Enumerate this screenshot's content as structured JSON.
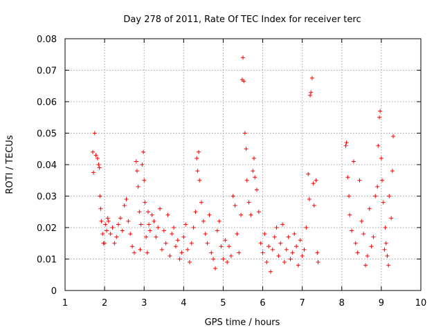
{
  "chart_data": {
    "type": "scatter",
    "title": "Day 278 of 2011, Rate Of TEC Index for receiver terc",
    "xlabel": "GPS time / hours",
    "ylabel": "ROTI / TECUs",
    "xlim": [
      1,
      10
    ],
    "ylim": [
      0,
      0.08
    ],
    "xticks": [
      "1",
      "2",
      "3",
      "4",
      "5",
      "6",
      "7",
      "8",
      "9",
      "10"
    ],
    "yticks": [
      "0",
      "0.01",
      "0.02",
      "0.03",
      "0.04",
      "0.05",
      "0.06",
      "0.07",
      "0.08"
    ],
    "grid": true,
    "marker": "plus",
    "color": "#ff0000",
    "series": [
      {
        "x": [
          1.7,
          1.72,
          1.75,
          1.78,
          1.82,
          1.85,
          1.87,
          1.88,
          1.9,
          1.92,
          1.95,
          1.97,
          2.0,
          2.02,
          2.05,
          2.08,
          2.1,
          2.15,
          2.2,
          2.25,
          2.3,
          2.35,
          2.4,
          2.45,
          2.5,
          2.55,
          2.6,
          2.65,
          2.7,
          2.75,
          2.8,
          2.82,
          2.85,
          2.88,
          2.9,
          2.92,
          2.95,
          2.98,
          3.0,
          3.02,
          3.05,
          3.08,
          3.1,
          3.12,
          3.15,
          3.2,
          3.25,
          3.3,
          3.35,
          3.4,
          3.45,
          3.5,
          3.55,
          3.6,
          3.65,
          3.7,
          3.75,
          3.8,
          3.85,
          3.9,
          3.95,
          4.0,
          4.05,
          4.1,
          4.15,
          4.2,
          4.25,
          4.3,
          4.33,
          4.35,
          4.38,
          4.4,
          4.45,
          4.5,
          4.55,
          4.6,
          4.65,
          4.7,
          4.75,
          4.8,
          4.85,
          4.9,
          4.95,
          5.0,
          5.05,
          5.1,
          5.15,
          5.2,
          5.25,
          5.3,
          5.35,
          5.4,
          5.45,
          5.48,
          5.5,
          5.52,
          5.55,
          5.58,
          5.6,
          5.65,
          5.7,
          5.75,
          5.78,
          5.8,
          5.85,
          5.9,
          5.95,
          6.0,
          6.05,
          6.1,
          6.15,
          6.2,
          6.25,
          6.3,
          6.35,
          6.4,
          6.45,
          6.5,
          6.55,
          6.6,
          6.65,
          6.7,
          6.75,
          6.8,
          6.85,
          6.9,
          6.95,
          7.0,
          7.05,
          7.1,
          7.15,
          7.18,
          7.2,
          7.22,
          7.25,
          7.28,
          7.3,
          7.35,
          7.38,
          7.4,
          8.1,
          8.12,
          8.15,
          8.18,
          8.2,
          8.25,
          8.3,
          8.35,
          8.4,
          8.45,
          8.5,
          8.55,
          8.6,
          8.65,
          8.7,
          8.75,
          8.8,
          8.85,
          8.9,
          8.92,
          8.95,
          8.97,
          9.0,
          9.02,
          9.05,
          9.08,
          9.1,
          9.12,
          9.15,
          9.18,
          9.2,
          9.25,
          9.28,
          9.3
        ],
        "y": [
          0.044,
          0.0375,
          0.05,
          0.043,
          0.042,
          0.04,
          0.039,
          0.03,
          0.026,
          0.022,
          0.018,
          0.015,
          0.015,
          0.021,
          0.019,
          0.023,
          0.022,
          0.018,
          0.02,
          0.015,
          0.017,
          0.021,
          0.023,
          0.019,
          0.027,
          0.029,
          0.022,
          0.018,
          0.014,
          0.012,
          0.041,
          0.038,
          0.033,
          0.025,
          0.013,
          0.021,
          0.04,
          0.044,
          0.035,
          0.028,
          0.017,
          0.012,
          0.025,
          0.021,
          0.019,
          0.024,
          0.022,
          0.017,
          0.02,
          0.026,
          0.013,
          0.019,
          0.015,
          0.024,
          0.011,
          0.018,
          0.02,
          0.014,
          0.016,
          0.01,
          0.012,
          0.017,
          0.021,
          0.013,
          0.009,
          0.015,
          0.02,
          0.025,
          0.042,
          0.038,
          0.044,
          0.035,
          0.028,
          0.022,
          0.018,
          0.015,
          0.024,
          0.012,
          0.01,
          0.007,
          0.019,
          0.022,
          0.014,
          0.01,
          0.016,
          0.009,
          0.014,
          0.011,
          0.03,
          0.027,
          0.018,
          0.012,
          0.024,
          0.067,
          0.074,
          0.0665,
          0.05,
          0.045,
          0.035,
          0.028,
          0.024,
          0.038,
          0.042,
          0.036,
          0.032,
          0.025,
          0.015,
          0.012,
          0.018,
          0.009,
          0.014,
          0.006,
          0.013,
          0.017,
          0.02,
          0.011,
          0.015,
          0.021,
          0.009,
          0.013,
          0.017,
          0.01,
          0.012,
          0.018,
          0.014,
          0.008,
          0.016,
          0.011,
          0.013,
          0.02,
          0.037,
          0.029,
          0.062,
          0.063,
          0.0675,
          0.034,
          0.027,
          0.035,
          0.012,
          0.009,
          0.046,
          0.047,
          0.036,
          0.03,
          0.024,
          0.019,
          0.041,
          0.015,
          0.012,
          0.035,
          0.022,
          0.018,
          0.008,
          0.011,
          0.026,
          0.014,
          0.017,
          0.03,
          0.033,
          0.046,
          0.055,
          0.057,
          0.042,
          0.035,
          0.028,
          0.013,
          0.02,
          0.015,
          0.011,
          0.008,
          0.03,
          0.023,
          0.038,
          0.049
        ]
      }
    ]
  }
}
